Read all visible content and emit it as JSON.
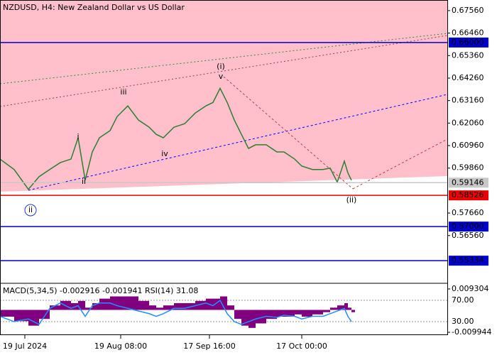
{
  "chart_data": [
    {
      "type": "line",
      "title": "NZDUSD, H4:  New Zealand Dollar vs US Dollar",
      "x": [
        0,
        4,
        8,
        11,
        14,
        17,
        20,
        22,
        24,
        26,
        28,
        31,
        33,
        36,
        39,
        42,
        44,
        46,
        49,
        52,
        55,
        58,
        60,
        62,
        64,
        66,
        68,
        70,
        72,
        75,
        78,
        80,
        83,
        85,
        88,
        91,
        93,
        95,
        97,
        98,
        99
      ],
      "series": [
        {
          "name": "NZDUSD",
          "color": "#2e7d32",
          "values": [
            0.603,
            0.5979,
            0.5882,
            0.5944,
            0.5979,
            0.6013,
            0.603,
            0.6134,
            0.5927,
            0.6065,
            0.6134,
            0.6169,
            0.6238,
            0.629,
            0.6221,
            0.6186,
            0.6151,
            0.6134,
            0.6186,
            0.6203,
            0.6255,
            0.629,
            0.6307,
            0.6376,
            0.6307,
            0.6221,
            0.6151,
            0.6082,
            0.61,
            0.61,
            0.6065,
            0.6065,
            0.603,
            0.5996,
            0.5979,
            0.5979,
            0.5986,
            0.5917,
            0.602,
            0.5962,
            0.5927
          ]
        }
      ],
      "xlim": [
        0,
        126
      ],
      "xticks": [
        {
          "value": 7,
          "label": "19 Jul 2024"
        },
        {
          "value": 34,
          "label": "19 Aug 08:00"
        },
        {
          "value": 59,
          "label": "17 Sep 16:00"
        },
        {
          "value": 85,
          "label": "17 Oct 00:00"
        }
      ],
      "ylim": [
        0.54262,
        0.68078
      ],
      "yticks": [
        {
          "value": 0.6756,
          "label": "0.67560"
        },
        {
          "value": 0.6646,
          "label": "0.66460"
        },
        {
          "value": 0.6536,
          "label": "0.65360"
        },
        {
          "value": 0.6426,
          "label": "0.64260"
        },
        {
          "value": 0.6316,
          "label": "0.63160"
        },
        {
          "value": 0.6206,
          "label": "0.62060"
        },
        {
          "value": 0.6096,
          "label": "0.60960"
        },
        {
          "value": 0.5986,
          "label": "0.59860"
        },
        {
          "value": 0.5766,
          "label": "0.57660"
        },
        {
          "value": 0.5656,
          "label": "0.56560"
        }
      ],
      "levels": [
        {
          "value": 0.66,
          "label": "0.66000",
          "color": "#0000cc"
        },
        {
          "value": 0.59146,
          "label": "0.59146",
          "color": "#c8c8c8"
        },
        {
          "value": 0.58526,
          "label": "0.58526",
          "color": "#ee0000"
        },
        {
          "value": 0.57,
          "label": "0.57000",
          "color": "#0000cc"
        },
        {
          "value": 0.55334,
          "label": "0.55334",
          "color": "#0000cc"
        }
      ],
      "annotations": [
        "(i)",
        "(ii)",
        "i",
        "ii",
        "iii",
        "iv",
        "v",
        "ii"
      ]
    },
    {
      "type": "bar",
      "title": "MACD(5,34,5) -0.002916 -0.001941 RSI(14) 31.08",
      "x": [
        0,
        4,
        8,
        11,
        14,
        17,
        20,
        22,
        24,
        26,
        28,
        31,
        33,
        36,
        39,
        42,
        44,
        46,
        49,
        52,
        55,
        58,
        60,
        62,
        64,
        66,
        68,
        70,
        72,
        75,
        78,
        80,
        83,
        85,
        88,
        91,
        93,
        95,
        97,
        98,
        99
      ],
      "series": [
        {
          "name": "MACD",
          "color": "#800080",
          "values": [
            -0.003,
            -0.005,
            -0.007,
            -0.004,
            0.002,
            0.004,
            0.003,
            0.004,
            0.001,
            0.003,
            0.005,
            0.006,
            0.006,
            0.006,
            0.004,
            0.002,
            0.001,
            0.002,
            0.003,
            0.003,
            0.004,
            0.005,
            0.005,
            0.006,
            0.002,
            -0.004,
            -0.007,
            -0.008,
            -0.006,
            -0.004,
            -0.003,
            -0.003,
            -0.002,
            -0.003,
            -0.002,
            -0.001,
            0.001,
            0.002,
            0.003,
            0.001,
            -0.001
          ]
        },
        {
          "name": "RSI",
          "color": "#1e90ff",
          "axis": "y2",
          "values": [
            40,
            30,
            35,
            25,
            55,
            65,
            55,
            60,
            40,
            60,
            65,
            65,
            60,
            55,
            50,
            45,
            40,
            45,
            55,
            55,
            60,
            65,
            60,
            70,
            45,
            30,
            25,
            30,
            35,
            40,
            38,
            42,
            40,
            35,
            40,
            40,
            45,
            50,
            55,
            40,
            30
          ]
        }
      ],
      "xlim": [
        0,
        126
      ],
      "ylim": [
        -0.011206,
        0.011513
      ],
      "yticks": [
        0.009304,
        -0.009944
      ],
      "y2lim": [
        4.7,
        100.7
      ],
      "y2ticks": [
        {
          "value": 70,
          "label": "70.00"
        },
        {
          "value": 30,
          "label": "30.00"
        }
      ]
    }
  ]
}
